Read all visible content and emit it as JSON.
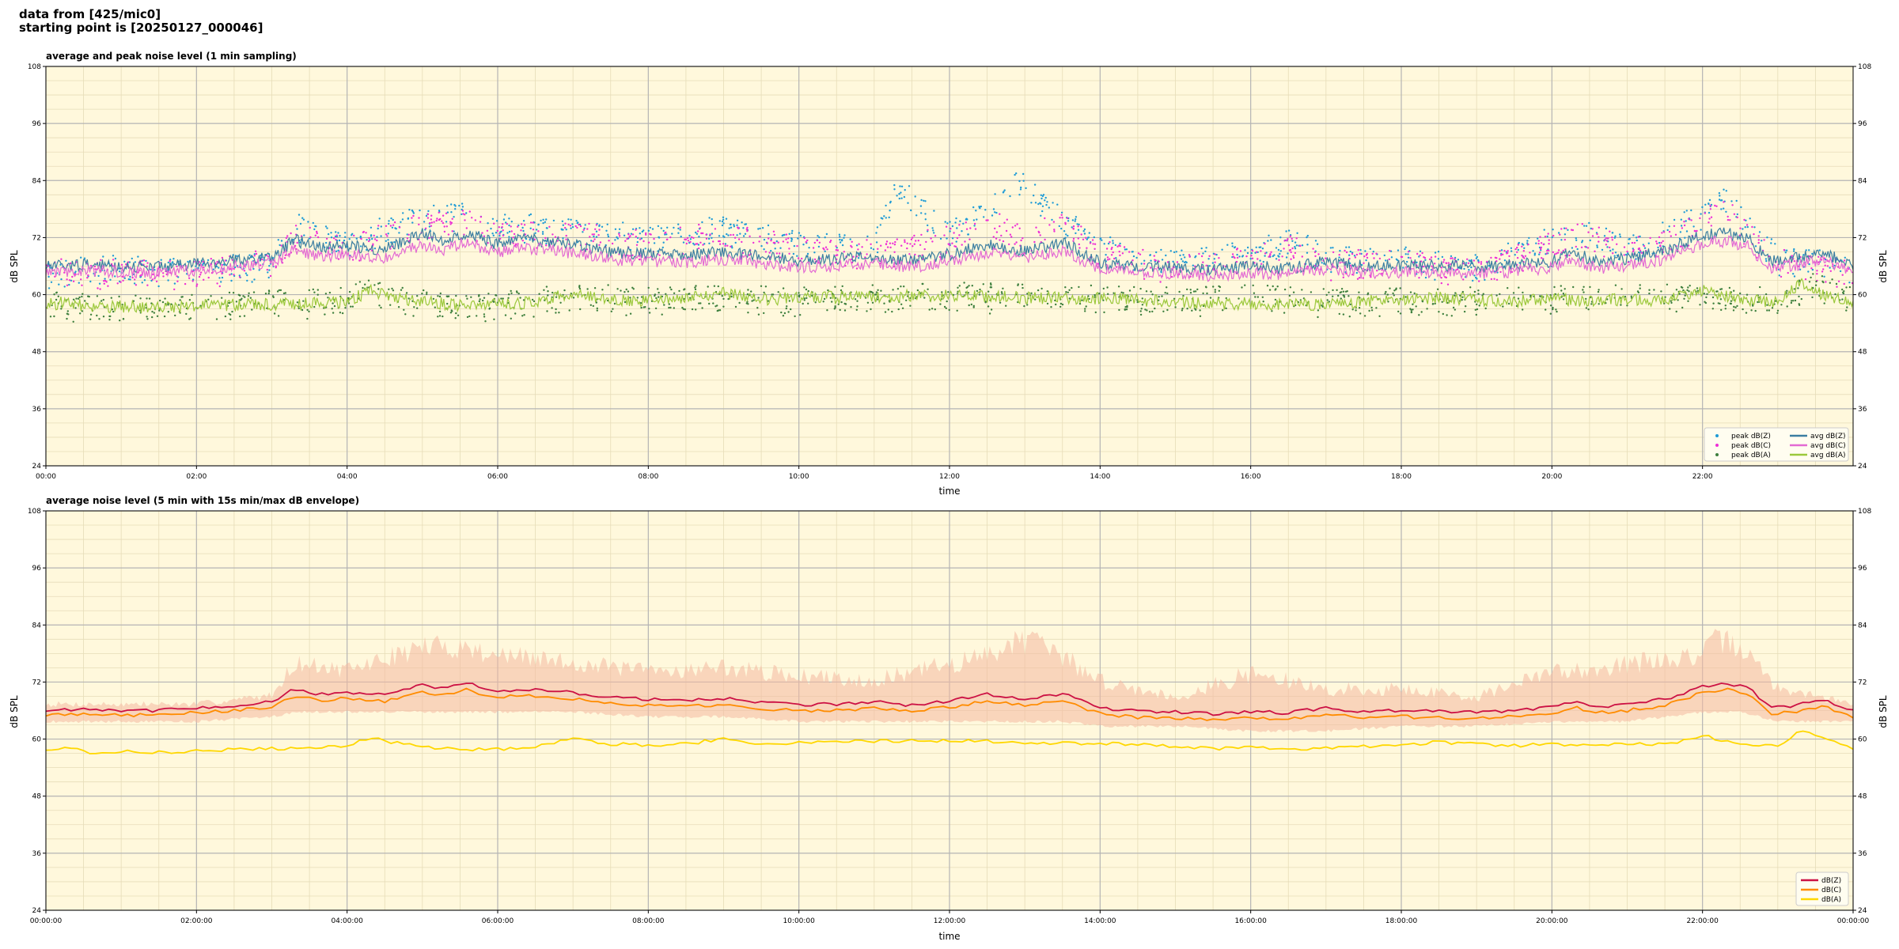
{
  "header": {
    "line1": "data from [425/mic0]",
    "line2": "starting point is [20250127_000046]"
  },
  "chart_data": [
    {
      "type": "line",
      "title": "average and peak noise level (1 min sampling)",
      "xlabel": "time",
      "ylabel": "dB SPL",
      "ylim": [
        24,
        108
      ],
      "yticks": [
        24,
        36,
        48,
        60,
        72,
        84,
        96,
        108
      ],
      "xlim_hours": [
        0,
        24
      ],
      "xticks": [
        "00:00",
        "02:00",
        "04:00",
        "06:00",
        "08:00",
        "10:00",
        "12:00",
        "14:00",
        "16:00",
        "18:00",
        "20:00",
        "22:00"
      ],
      "grid": true,
      "background": "#fff8dc",
      "legend_placement": "lower-right",
      "series": [
        {
          "name": "peak dB(Z)",
          "kind": "points",
          "color": "#1f9bd6",
          "time_hours": [
            0,
            1,
            2,
            3,
            3.3,
            4,
            5,
            5.5,
            6,
            7,
            8,
            9,
            10,
            11,
            11.3,
            12,
            12.5,
            12.9,
            13.5,
            14,
            15,
            16,
            16.5,
            17,
            18,
            19,
            20,
            20.5,
            21,
            22,
            22.2,
            22.5,
            23,
            24
          ],
          "values": [
            67,
            68,
            67,
            69,
            77,
            73,
            79,
            79,
            77,
            76,
            74,
            76,
            73,
            72,
            85,
            75,
            80,
            86,
            78,
            72,
            69,
            71,
            74,
            70,
            70,
            68,
            74,
            76,
            72,
            79,
            84,
            79,
            70,
            68
          ]
        },
        {
          "name": "peak dB(C)",
          "kind": "points",
          "color": "#ee2fd6",
          "time_hours": [
            0,
            1,
            2,
            3,
            3.3,
            4,
            5,
            5.5,
            6,
            7,
            8,
            9,
            10,
            11,
            12,
            12.5,
            13,
            13.5,
            14,
            15,
            16,
            16.5,
            17,
            18,
            19,
            20,
            20.5,
            21,
            22,
            22.2,
            22.5,
            23,
            24
          ],
          "values": [
            67,
            67,
            67,
            69,
            75,
            72,
            77,
            78,
            75,
            75,
            73,
            75,
            72,
            71,
            74,
            78,
            74,
            77,
            71,
            68,
            70,
            73,
            69,
            69,
            67,
            73,
            75,
            71,
            77,
            82,
            77,
            69,
            67
          ]
        },
        {
          "name": "peak dB(A)",
          "kind": "points",
          "color": "#3d7f3d",
          "time_hours": [
            0,
            1,
            2,
            3,
            4,
            4.2,
            5,
            6,
            7,
            8,
            9,
            10,
            11,
            12,
            13,
            14,
            15,
            16,
            17,
            18,
            19,
            20,
            21,
            22,
            23,
            23.5,
            24
          ],
          "values": [
            60,
            60,
            60,
            61,
            61,
            63,
            61,
            60,
            62,
            61,
            62,
            61,
            62,
            62,
            62,
            62,
            61,
            62,
            61,
            61,
            61,
            62,
            62,
            62,
            61,
            65,
            61
          ]
        },
        {
          "name": "avg dB(Z)",
          "kind": "line",
          "color": "#3b7ea1",
          "time_hours": [
            0,
            0.5,
            1,
            1.5,
            2,
            2.5,
            3,
            3.3,
            3.6,
            4,
            4.5,
            5,
            5.3,
            5.6,
            6,
            6.3,
            6.7,
            7,
            7.5,
            8,
            8.5,
            9,
            9.5,
            10,
            10.5,
            11,
            11.5,
            12,
            12.5,
            13,
            13.5,
            14,
            14.5,
            15,
            15.5,
            16,
            16.5,
            17,
            17.5,
            18,
            18.5,
            19,
            19.5,
            20,
            20.3,
            20.6,
            21,
            21.5,
            22,
            22.3,
            22.6,
            22.9,
            23.2,
            23.6,
            24
          ],
          "values": [
            65.8,
            66.3,
            66.0,
            65.9,
            66.5,
            67.1,
            68.0,
            71.5,
            70.0,
            70.3,
            69.5,
            72.8,
            71.5,
            73.2,
            70.5,
            71.8,
            71.0,
            70.4,
            69.0,
            68.5,
            68.2,
            69.0,
            68.0,
            67.2,
            67.5,
            68.0,
            67.2,
            68.5,
            70.5,
            69.0,
            71.0,
            66.8,
            66.0,
            65.9,
            65.2,
            66.0,
            65.5,
            67.0,
            66.0,
            66.2,
            66.0,
            65.9,
            66.2,
            67.0,
            68.8,
            67.0,
            67.6,
            69.0,
            72.5,
            73.0,
            72.0,
            67.0,
            67.5,
            68.8,
            66.0
          ]
        },
        {
          "name": "avg dB(C)",
          "kind": "line",
          "color": "#e36ad3",
          "time_hours": [
            0,
            0.5,
            1,
            1.5,
            2,
            2.5,
            3,
            3.3,
            3.6,
            4,
            4.5,
            5,
            5.3,
            5.6,
            6,
            6.3,
            6.7,
            7,
            7.5,
            8,
            8.5,
            9,
            9.5,
            10,
            10.5,
            11,
            11.5,
            12,
            12.5,
            13,
            13.5,
            14,
            14.5,
            15,
            15.5,
            16,
            16.5,
            17,
            17.5,
            18,
            18.5,
            19,
            19.5,
            20,
            20.3,
            20.6,
            21,
            21.5,
            22,
            22.3,
            22.6,
            22.9,
            23.2,
            23.6,
            24
          ],
          "values": [
            64.5,
            65.0,
            64.8,
            64.6,
            65.2,
            65.9,
            66.5,
            69.5,
            68.0,
            68.5,
            67.8,
            70.5,
            69.5,
            71.0,
            68.8,
            70.0,
            69.3,
            68.7,
            67.5,
            67.0,
            66.7,
            67.5,
            66.5,
            65.8,
            66.0,
            66.5,
            65.7,
            67.0,
            68.8,
            67.5,
            69.2,
            65.3,
            64.6,
            64.5,
            63.9,
            64.6,
            64.2,
            65.5,
            64.5,
            64.8,
            64.6,
            64.5,
            64.8,
            65.5,
            67.2,
            65.5,
            66.2,
            67.5,
            70.8,
            71.2,
            70.2,
            65.8,
            66.2,
            67.4,
            64.8
          ]
        },
        {
          "name": "avg dB(A)",
          "kind": "line",
          "color": "#9bc83b",
          "time_hours": [
            0,
            0.3,
            0.6,
            1,
            1.5,
            2,
            2.5,
            3,
            3.5,
            4,
            4.3,
            4.6,
            5,
            5.5,
            6,
            6.5,
            7,
            7.5,
            8,
            8.5,
            9,
            9.5,
            10,
            11,
            12,
            13,
            14,
            15,
            15.5,
            16,
            16.5,
            17,
            17.5,
            18,
            18.5,
            19,
            19.5,
            20,
            20.5,
            21,
            21.5,
            22,
            22.5,
            23,
            23.3,
            23.6,
            24
          ],
          "values": [
            57.8,
            58.5,
            57.0,
            57.5,
            57.3,
            57.6,
            57.9,
            58.0,
            58.2,
            58.5,
            60.8,
            59.5,
            58.5,
            57.8,
            58.0,
            58.4,
            60.5,
            59.0,
            58.8,
            59.0,
            60.5,
            59.0,
            59.3,
            59.6,
            59.8,
            59.4,
            59.2,
            58.5,
            58.0,
            58.2,
            57.8,
            58.0,
            58.6,
            58.8,
            59.5,
            58.9,
            58.6,
            59.0,
            58.7,
            59.0,
            58.8,
            61.0,
            58.9,
            58.5,
            62.5,
            60.0,
            58.0
          ]
        }
      ]
    },
    {
      "type": "line",
      "title": "average noise level (5 min with 15s min/max dB envelope)",
      "xlabel": "time",
      "ylabel": "dB SPL",
      "ylim": [
        24,
        108
      ],
      "yticks": [
        24,
        36,
        48,
        60,
        72,
        84,
        96,
        108
      ],
      "xlim_hours": [
        0,
        24
      ],
      "xticks": [
        "00:00:00",
        "02:00:00",
        "04:00:00",
        "06:00:00",
        "08:00:00",
        "10:00:00",
        "12:00:00",
        "14:00:00",
        "16:00:00",
        "18:00:00",
        "20:00:00",
        "22:00:00",
        "00:00:00"
      ],
      "grid": true,
      "background": "#fff8dc",
      "legend_placement": "lower-right",
      "envelope": {
        "color": "#f4b8a0",
        "time_hours": [
          0,
          1,
          2,
          3,
          3.3,
          4,
          5,
          5.5,
          6,
          7,
          8,
          9,
          10,
          11,
          12,
          12.5,
          12.9,
          13.5,
          14,
          15,
          16,
          17,
          18,
          19,
          20,
          21,
          22,
          22.2,
          22.5,
          23,
          24
        ],
        "min": [
          64,
          64,
          64,
          65,
          66,
          66,
          66,
          66,
          66,
          66,
          65,
          65,
          64,
          64,
          64,
          64,
          64,
          64,
          63,
          63,
          62,
          62,
          63,
          63,
          64,
          64,
          66,
          66,
          66,
          64,
          64
        ],
        "max": [
          68,
          68,
          68,
          70,
          78,
          76,
          82,
          82,
          80,
          78,
          76,
          77,
          75,
          74,
          78,
          80,
          85,
          80,
          74,
          70,
          76,
          72,
          72,
          70,
          76,
          78,
          80,
          84,
          82,
          72,
          68
        ]
      },
      "series": [
        {
          "name": "dB(Z)",
          "color": "#cc1144",
          "time_hours": [
            0,
            0.5,
            1,
            1.5,
            2,
            2.5,
            3,
            3.3,
            3.6,
            4,
            4.5,
            5,
            5.3,
            5.6,
            6,
            6.3,
            6.7,
            7,
            7.5,
            8,
            8.5,
            9,
            9.5,
            10,
            10.5,
            11,
            11.5,
            12,
            12.5,
            13,
            13.5,
            14,
            14.5,
            15,
            15.5,
            16,
            16.5,
            17,
            17.5,
            18,
            18.5,
            19,
            19.5,
            20,
            20.3,
            20.6,
            21,
            21.5,
            22,
            22.3,
            22.6,
            22.9,
            23.2,
            23.6,
            24
          ],
          "values": [
            66.0,
            66.4,
            66.1,
            66.0,
            66.6,
            67.0,
            67.8,
            70.5,
            69.5,
            69.8,
            69.2,
            71.5,
            70.5,
            71.8,
            69.8,
            70.6,
            70.2,
            69.8,
            68.8,
            68.4,
            68.1,
            68.6,
            67.8,
            67.2,
            67.4,
            67.8,
            67.1,
            68.0,
            69.5,
            68.4,
            69.6,
            66.6,
            65.9,
            65.8,
            65.2,
            65.8,
            65.5,
            66.6,
            65.8,
            66.0,
            65.8,
            65.7,
            66.0,
            66.8,
            68.0,
            66.8,
            67.3,
            68.4,
            71.0,
            71.8,
            71.0,
            66.6,
            67.0,
            68.2,
            66.0
          ]
        },
        {
          "name": "dB(C)",
          "color": "#ff8c00",
          "time_hours": [
            0,
            0.5,
            1,
            1.5,
            2,
            2.5,
            3,
            3.3,
            3.6,
            4,
            4.5,
            5,
            5.3,
            5.6,
            6,
            6.3,
            6.7,
            7,
            7.5,
            8,
            8.5,
            9,
            9.5,
            10,
            10.5,
            11,
            11.5,
            12,
            12.5,
            13,
            13.5,
            14,
            14.5,
            15,
            15.5,
            16,
            16.5,
            17,
            17.5,
            18,
            18.5,
            19,
            19.5,
            20,
            20.3,
            20.6,
            21,
            21.5,
            22,
            22.3,
            22.6,
            22.9,
            23.2,
            23.6,
            24
          ],
          "values": [
            65.0,
            65.4,
            65.1,
            65.0,
            65.6,
            66.0,
            66.8,
            69.0,
            68.2,
            68.5,
            67.9,
            70.0,
            69.2,
            70.4,
            68.5,
            69.3,
            68.9,
            68.5,
            67.5,
            67.1,
            66.8,
            67.3,
            66.5,
            65.9,
            66.1,
            66.5,
            65.8,
            66.7,
            68.1,
            67.1,
            68.3,
            65.3,
            64.6,
            64.5,
            63.9,
            64.5,
            64.2,
            65.3,
            64.5,
            64.7,
            64.5,
            64.4,
            64.7,
            65.5,
            66.7,
            65.5,
            66.0,
            67.1,
            69.8,
            70.4,
            69.7,
            65.3,
            65.7,
            66.9,
            64.8
          ]
        },
        {
          "name": "dB(A)",
          "color": "#ffd700",
          "time_hours": [
            0,
            0.3,
            0.6,
            1,
            1.5,
            2,
            2.5,
            3,
            3.5,
            4,
            4.3,
            4.6,
            5,
            5.5,
            6,
            6.5,
            7,
            7.5,
            8,
            8.5,
            9,
            9.5,
            10,
            11,
            12,
            13,
            14,
            15,
            15.5,
            16,
            16.5,
            17,
            17.5,
            18,
            18.5,
            19,
            19.5,
            20,
            20.5,
            21,
            21.5,
            22,
            22.5,
            23,
            23.3,
            23.6,
            24
          ],
          "values": [
            57.8,
            58.3,
            57.2,
            57.4,
            57.2,
            57.5,
            57.8,
            58.0,
            58.1,
            58.4,
            60.4,
            59.3,
            58.4,
            57.8,
            57.9,
            58.3,
            60.2,
            59.0,
            58.7,
            58.9,
            60.2,
            59.0,
            59.3,
            59.6,
            59.7,
            59.3,
            59.1,
            58.5,
            58.0,
            58.2,
            57.8,
            58.0,
            58.5,
            58.8,
            59.4,
            58.9,
            58.6,
            59.0,
            58.7,
            59.0,
            58.8,
            60.8,
            58.9,
            58.5,
            62.0,
            60.0,
            58.0
          ]
        }
      ]
    }
  ]
}
